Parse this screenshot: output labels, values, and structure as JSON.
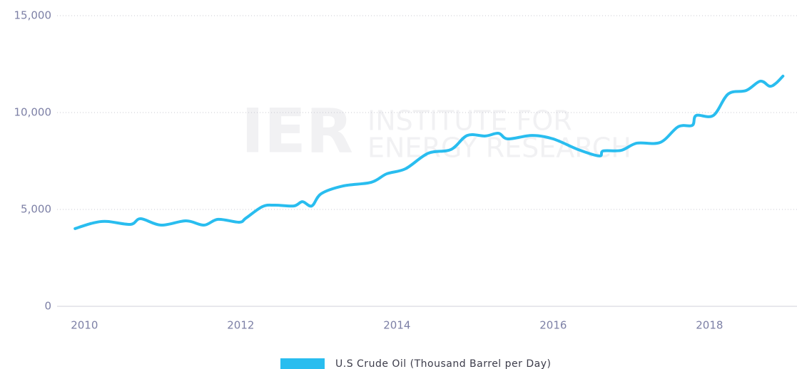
{
  "chart_data": {
    "type": "line",
    "watermark": {
      "logo": "IER",
      "lines": [
        "INSTITUTE FOR",
        "ENERGY RESEARCH"
      ]
    },
    "xlim": [
      2009.65,
      2019.12
    ],
    "xticks": [
      2010,
      2012,
      2014,
      2016,
      2018
    ],
    "ylim": [
      0,
      15000
    ],
    "yticks": [
      0,
      {
        "value": 5000,
        "label": "5,000"
      },
      {
        "value": 10000,
        "label": "10,000"
      },
      {
        "value": 15000,
        "label": "15,000"
      }
    ],
    "grid": true,
    "legend": "bottom",
    "series": [
      {
        "name": "U.S Crude Oil (Thousand Barrel per Day)",
        "color": "#29bdef",
        "x": [
          2009.88,
          2010.11,
          2010.29,
          2010.59,
          2010.72,
          2010.98,
          2011.3,
          2011.53,
          2011.71,
          2011.98,
          2012.07,
          2012.28,
          2012.44,
          2012.68,
          2012.79,
          2012.91,
          2013.03,
          2013.31,
          2013.67,
          2013.87,
          2014.11,
          2014.4,
          2014.69,
          2014.9,
          2015.13,
          2015.3,
          2015.42,
          2015.73,
          2016.0,
          2016.32,
          2016.59,
          2016.64,
          2016.87,
          2017.07,
          2017.37,
          2017.6,
          2017.78,
          2017.83,
          2018.05,
          2018.24,
          2018.47,
          2018.65,
          2018.77,
          2018.85,
          2018.94
        ],
        "values": [
          4010,
          4300,
          4380,
          4230,
          4520,
          4190,
          4410,
          4190,
          4490,
          4340,
          4560,
          5150,
          5220,
          5180,
          5400,
          5180,
          5810,
          6210,
          6400,
          6840,
          7100,
          7900,
          8090,
          8820,
          8790,
          8930,
          8640,
          8820,
          8640,
          8090,
          7760,
          8020,
          8050,
          8420,
          8460,
          9270,
          9340,
          9850,
          9850,
          10960,
          11140,
          11620,
          11360,
          11510,
          11880
        ]
      }
    ]
  }
}
